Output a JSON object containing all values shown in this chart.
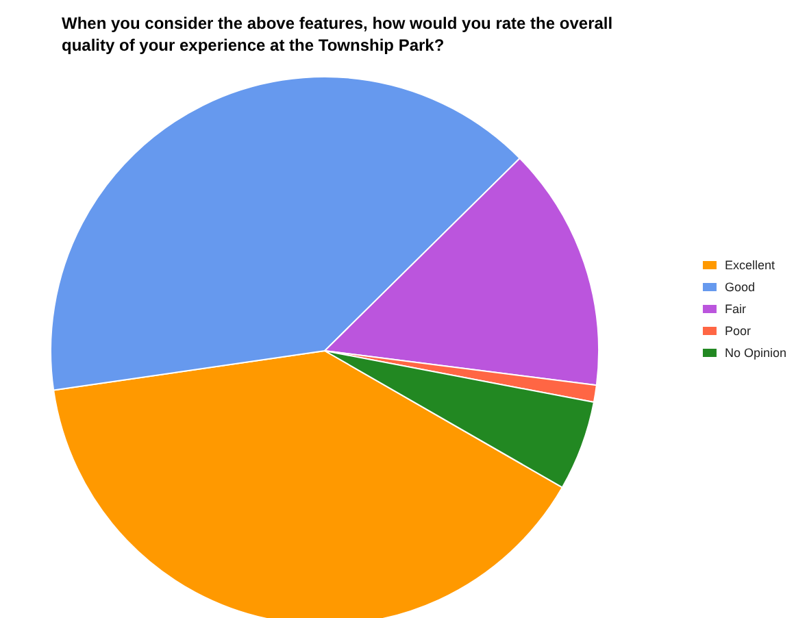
{
  "chart_data": {
    "type": "pie",
    "title": "When you consider the above features, how would you rate the overall quality of your experience at the Township Park?",
    "categories": [
      "Excellent",
      "Good",
      "Fair",
      "Poor",
      "No Opinion"
    ],
    "values": [
      39.4,
      39.9,
      14.4,
      1.0,
      5.3
    ],
    "colors": [
      "#ff9900",
      "#6699ee",
      "#bb55dd",
      "#ff6644",
      "#228822"
    ],
    "legend": "right"
  }
}
